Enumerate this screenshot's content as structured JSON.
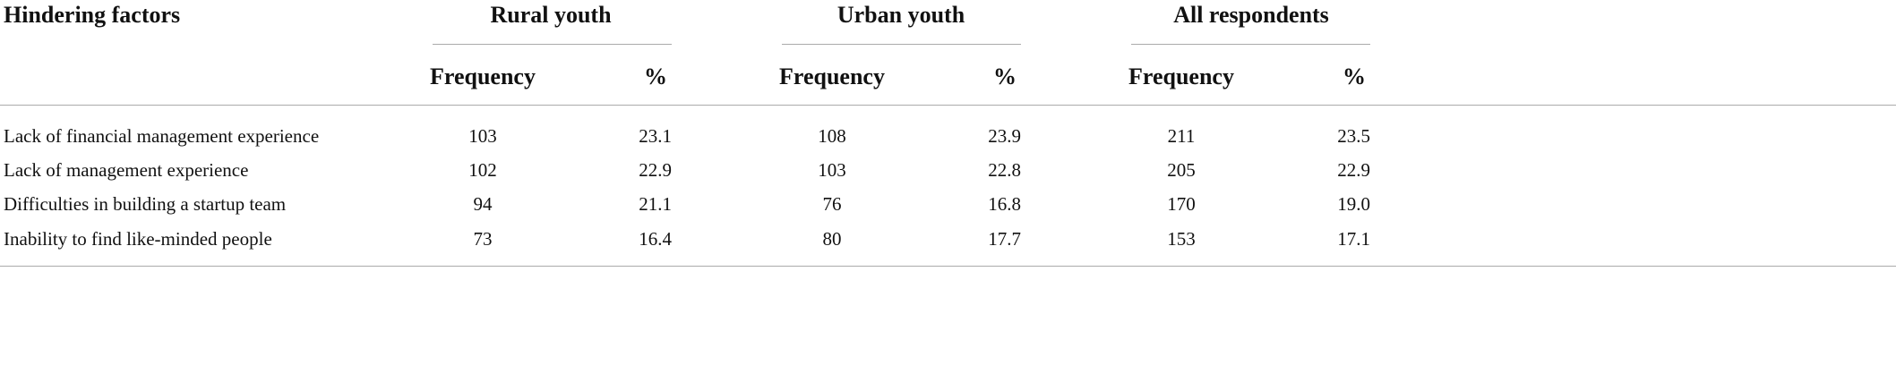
{
  "table": {
    "header": {
      "title": "Hindering factors",
      "groups": [
        "Rural youth",
        "Urban youth",
        "All respondents"
      ],
      "subheaders": [
        "Frequency",
        "%",
        "Frequency",
        "%",
        "Frequency",
        "%"
      ]
    },
    "rows": [
      [
        "Lack of financial management experience",
        "103",
        "23.1",
        "108",
        "23.9",
        "211",
        "23.5"
      ],
      [
        "Lack of management experience",
        "102",
        "22.9",
        "103",
        "22.8",
        "205",
        "22.9"
      ],
      [
        "Difficulties in building a startup team",
        "94",
        "21.1",
        "76",
        "16.8",
        "170",
        "19.0"
      ],
      [
        "Inability to find like-minded people",
        "73",
        "16.4",
        "80",
        "17.7",
        "153",
        "17.1"
      ]
    ]
  }
}
